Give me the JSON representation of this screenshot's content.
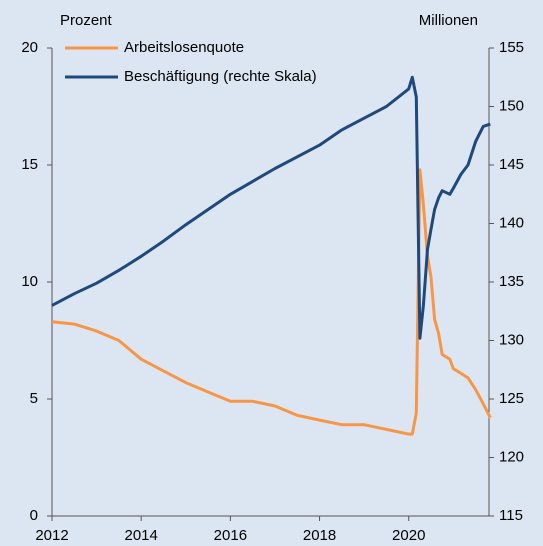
{
  "chart_data": {
    "type": "line",
    "y_label": "Prozent",
    "y2_label": "Millionen",
    "x": [
      2012,
      2012.5,
      2013,
      2013.5,
      2014,
      2014.5,
      2015,
      2015.5,
      2016,
      2016.5,
      2017,
      2017.5,
      2018,
      2018.5,
      2019,
      2019.5,
      2020,
      2020.08,
      2020.17,
      2020.25,
      2020.33,
      2020.42,
      2020.5,
      2020.58,
      2020.67,
      2020.75,
      2020.92,
      2021,
      2021.17,
      2021.33,
      2021.5,
      2021.67,
      2021.83
    ],
    "series": [
      {
        "name": "Arbeitslosenquote",
        "color": "#f79646",
        "axis": "y",
        "values": [
          8.3,
          8.2,
          7.9,
          7.5,
          6.7,
          6.2,
          5.7,
          5.3,
          4.9,
          4.9,
          4.7,
          4.3,
          4.1,
          3.9,
          3.9,
          3.7,
          3.5,
          3.5,
          4.4,
          14.8,
          13.3,
          11.1,
          10.2,
          8.4,
          7.8,
          6.9,
          6.7,
          6.3,
          6.1,
          5.9,
          5.4,
          4.8,
          4.2
        ]
      },
      {
        "name": "Beschäftigung (rechte Skala)",
        "color": "#1f497d",
        "axis": "y2",
        "values": [
          133,
          134,
          134.9,
          136,
          137.2,
          138.5,
          139.9,
          141.2,
          142.5,
          143.6,
          144.7,
          145.7,
          146.7,
          148,
          149,
          150,
          151.5,
          152.5,
          150.8,
          130.2,
          133,
          137.8,
          139.5,
          141.2,
          142.2,
          142.8,
          142.5,
          143,
          144.2,
          145,
          147,
          148.3,
          148.5
        ]
      }
    ],
    "xlim": [
      2012,
      2021.8
    ],
    "xticks": [
      2012,
      2014,
      2016,
      2018,
      2020
    ],
    "ylim": [
      0,
      20
    ],
    "yticks": [
      0,
      5,
      10,
      15,
      20
    ],
    "y2lim": [
      115,
      155
    ],
    "y2ticks": [
      115,
      120,
      125,
      130,
      135,
      140,
      145,
      150,
      155
    ],
    "legend": "top-left"
  }
}
